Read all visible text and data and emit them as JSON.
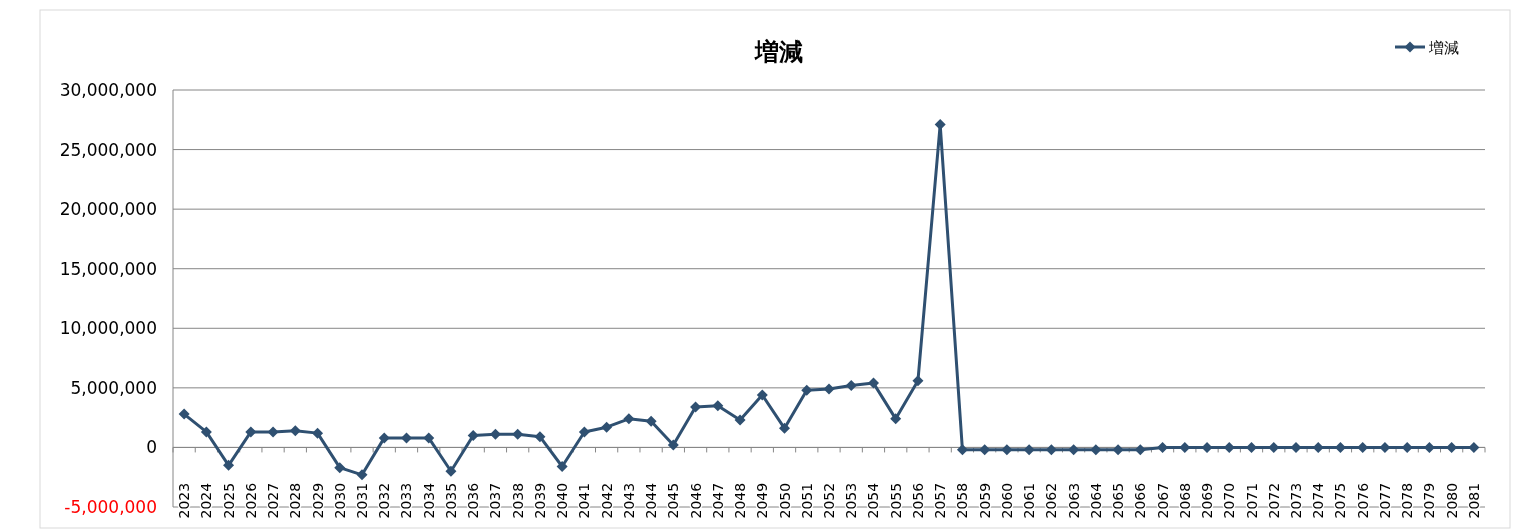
{
  "chart_data": {
    "type": "line",
    "title": "増減",
    "legend": "top right",
    "grid": "y",
    "marker": "diamond",
    "line_style": "solid",
    "categories": [
      "2023",
      "2024",
      "2025",
      "2026",
      "2027",
      "2028",
      "2029",
      "2030",
      "2031",
      "2032",
      "2033",
      "2034",
      "2035",
      "2036",
      "2037",
      "2038",
      "2039",
      "2040",
      "2041",
      "2042",
      "2043",
      "2044",
      "2045",
      "2046",
      "2047",
      "2048",
      "2049",
      "2050",
      "2051",
      "2052",
      "2053",
      "2054",
      "2055",
      "2056",
      "2057",
      "2058",
      "2059",
      "2060",
      "2061",
      "2062",
      "2063",
      "2064",
      "2065",
      "2066",
      "2067",
      "2068",
      "2069",
      "2070",
      "2071",
      "2072",
      "2073",
      "2074",
      "2075",
      "2076",
      "2077",
      "2078",
      "2079",
      "2080",
      "2081"
    ],
    "series": [
      {
        "name": "増減",
        "color": "#2f5071",
        "values": [
          2800000,
          1300000,
          -1500000,
          1300000,
          1300000,
          1400000,
          1200000,
          -1700000,
          -2300000,
          800000,
          800000,
          800000,
          -2000000,
          1000000,
          1100000,
          1100000,
          900000,
          -1600000,
          1300000,
          1700000,
          2400000,
          2200000,
          200000,
          3400000,
          3500000,
          2300000,
          4400000,
          1600000,
          4800000,
          4900000,
          5200000,
          5400000,
          2400000,
          5600000,
          27100000,
          -200000,
          -200000,
          -200000,
          -200000,
          -200000,
          -200000,
          -200000,
          -200000,
          -200000,
          0,
          0,
          0,
          0,
          0,
          0,
          0,
          0,
          0,
          0,
          0,
          0,
          0,
          0,
          0
        ]
      }
    ],
    "ylim": [
      -5000000,
      30000000
    ],
    "yticks": [
      {
        "value": -5000000,
        "label": "-5,000,000"
      },
      {
        "value": 0,
        "label": "0"
      },
      {
        "value": 5000000,
        "label": "5,000,000"
      },
      {
        "value": 10000000,
        "label": "10,000,000"
      },
      {
        "value": 15000000,
        "label": "15,000,000"
      },
      {
        "value": 20000000,
        "label": "20,000,000"
      },
      {
        "value": 25000000,
        "label": "25,000,000"
      },
      {
        "value": 30000000,
        "label": "30,000,000"
      }
    ]
  }
}
